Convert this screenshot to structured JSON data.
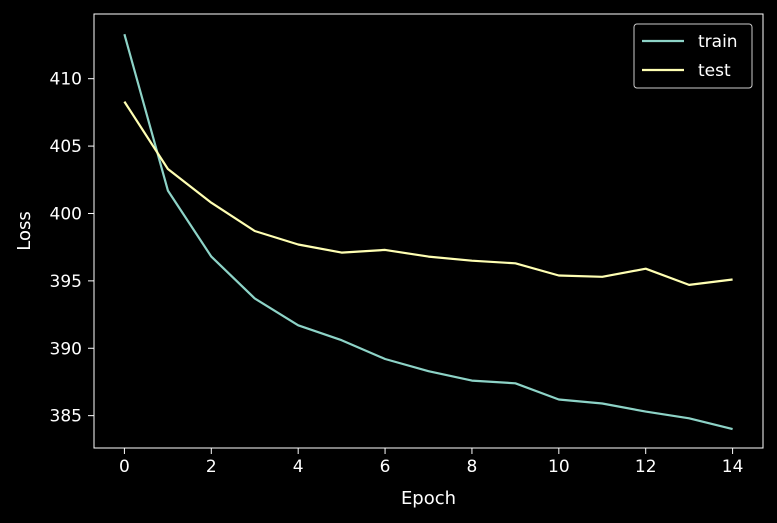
{
  "chart_data": {
    "type": "line",
    "title": "",
    "xlabel": "Epoch",
    "ylabel": "Loss",
    "x": [
      0,
      1,
      2,
      3,
      4,
      5,
      6,
      7,
      8,
      9,
      10,
      11,
      12,
      13,
      14
    ],
    "xlim": [
      -0.7,
      14.7
    ],
    "ylim": [
      382.6,
      414.8
    ],
    "xticks": [
      0,
      2,
      4,
      6,
      8,
      10,
      12,
      14
    ],
    "yticks": [
      385,
      390,
      395,
      400,
      405,
      410
    ],
    "grid": false,
    "legend": "top-right",
    "series": [
      {
        "name": "train",
        "color": "#8dd3c7",
        "values": [
          413.3,
          401.7,
          396.8,
          393.7,
          391.7,
          390.6,
          389.2,
          388.3,
          387.6,
          387.4,
          386.2,
          385.9,
          385.3,
          384.8,
          384.0
        ]
      },
      {
        "name": "test",
        "color": "#ffffb3",
        "values": [
          408.3,
          403.3,
          400.8,
          398.7,
          397.7,
          397.1,
          397.3,
          396.8,
          396.5,
          396.3,
          395.4,
          395.3,
          395.9,
          394.7,
          395.1
        ]
      }
    ]
  }
}
